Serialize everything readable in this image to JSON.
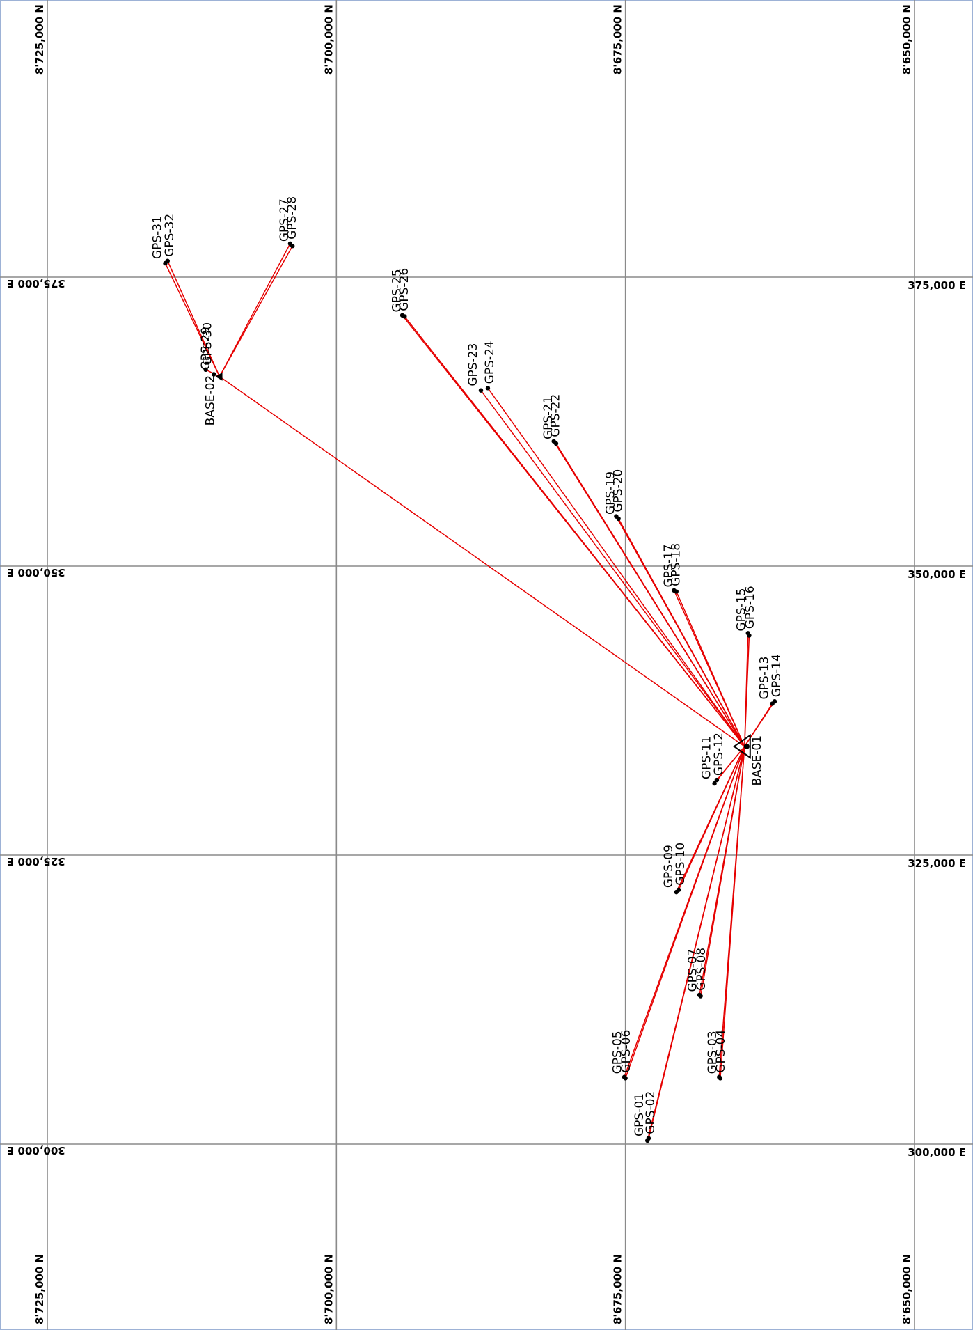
{
  "grid": {
    "northings": [
      {
        "label": "8'725,000 N",
        "value": 8725000
      },
      {
        "label": "8'700,000 N",
        "value": 8700000
      },
      {
        "label": "8'675,000 N",
        "value": 8675000
      },
      {
        "label": "8'650,000 N",
        "value": 8650000
      }
    ],
    "eastings": [
      {
        "label": "375,000 E",
        "value": 375000
      },
      {
        "label": "350,000 E",
        "value": 350000
      },
      {
        "label": "325,000 E",
        "value": 325000
      },
      {
        "label": "300,000 E",
        "value": 300000
      }
    ]
  },
  "bases": [
    {
      "id": "BASE-01",
      "e": 334400,
      "n": 8664700
    },
    {
      "id": "BASE-02",
      "e": 366400,
      "n": 8710100
    }
  ],
  "points": [
    {
      "id": "GPS-01",
      "e": 300300,
      "n": 8673100
    },
    {
      "id": "GPS-02",
      "e": 300500,
      "n": 8673000
    },
    {
      "id": "GPS-03",
      "e": 305700,
      "n": 8666800
    },
    {
      "id": "GPS-04",
      "e": 305800,
      "n": 8666900
    },
    {
      "id": "GPS-05",
      "e": 305700,
      "n": 8675000
    },
    {
      "id": "GPS-06",
      "e": 305800,
      "n": 8675100
    },
    {
      "id": "GPS-07",
      "e": 312800,
      "n": 8668500
    },
    {
      "id": "GPS-08",
      "e": 312900,
      "n": 8668600
    },
    {
      "id": "GPS-09",
      "e": 321800,
      "n": 8670600
    },
    {
      "id": "GPS-10",
      "e": 322000,
      "n": 8670400
    },
    {
      "id": "GPS-11",
      "e": 331200,
      "n": 8667300
    },
    {
      "id": "GPS-12",
      "e": 331500,
      "n": 8667100
    },
    {
      "id": "GPS-13",
      "e": 338100,
      "n": 8662300
    },
    {
      "id": "GPS-14",
      "e": 338300,
      "n": 8662100
    },
    {
      "id": "GPS-15",
      "e": 344000,
      "n": 8664300
    },
    {
      "id": "GPS-16",
      "e": 344200,
      "n": 8664400
    },
    {
      "id": "GPS-17",
      "e": 347800,
      "n": 8670600
    },
    {
      "id": "GPS-18",
      "e": 347900,
      "n": 8670800
    },
    {
      "id": "GPS-19",
      "e": 354100,
      "n": 8675600
    },
    {
      "id": "GPS-20",
      "e": 354300,
      "n": 8675800
    },
    {
      "id": "GPS-21",
      "e": 360600,
      "n": 8681000
    },
    {
      "id": "GPS-22",
      "e": 360800,
      "n": 8681200
    },
    {
      "id": "GPS-23",
      "e": 365200,
      "n": 8687500
    },
    {
      "id": "GPS-24",
      "e": 365400,
      "n": 8686900
    },
    {
      "id": "GPS-25",
      "e": 371600,
      "n": 8694100
    },
    {
      "id": "GPS-26",
      "e": 371700,
      "n": 8694300
    },
    {
      "id": "GPS-27",
      "e": 377700,
      "n": 8703800
    },
    {
      "id": "GPS-28",
      "e": 377900,
      "n": 8704000
    },
    {
      "id": "GPS-29",
      "e": 366600,
      "n": 8710600
    },
    {
      "id": "GPS-30",
      "e": 367000,
      "n": 8711300
    },
    {
      "id": "GPS-31",
      "e": 376200,
      "n": 8714800
    },
    {
      "id": "GPS-32",
      "e": 376400,
      "n": 8714600
    }
  ],
  "baselines": [
    [
      "BASE-01",
      "GPS-01"
    ],
    [
      "BASE-01",
      "GPS-02"
    ],
    [
      "BASE-01",
      "GPS-03"
    ],
    [
      "BASE-01",
      "GPS-04"
    ],
    [
      "BASE-01",
      "GPS-05"
    ],
    [
      "BASE-01",
      "GPS-06"
    ],
    [
      "BASE-01",
      "GPS-07"
    ],
    [
      "BASE-01",
      "GPS-08"
    ],
    [
      "BASE-01",
      "GPS-09"
    ],
    [
      "BASE-01",
      "GPS-10"
    ],
    [
      "BASE-01",
      "GPS-11"
    ],
    [
      "BASE-01",
      "GPS-12"
    ],
    [
      "BASE-01",
      "GPS-13"
    ],
    [
      "BASE-01",
      "GPS-14"
    ],
    [
      "BASE-01",
      "GPS-15"
    ],
    [
      "BASE-01",
      "GPS-16"
    ],
    [
      "BASE-01",
      "GPS-17"
    ],
    [
      "BASE-01",
      "GPS-18"
    ],
    [
      "BASE-01",
      "GPS-19"
    ],
    [
      "BASE-01",
      "GPS-20"
    ],
    [
      "BASE-01",
      "GPS-21"
    ],
    [
      "BASE-01",
      "GPS-22"
    ],
    [
      "BASE-01",
      "GPS-23"
    ],
    [
      "BASE-01",
      "GPS-24"
    ],
    [
      "BASE-01",
      "GPS-25"
    ],
    [
      "BASE-01",
      "GPS-26"
    ],
    [
      "BASE-01",
      "BASE-02"
    ],
    [
      "BASE-02",
      "GPS-27"
    ],
    [
      "BASE-02",
      "GPS-28"
    ],
    [
      "BASE-02",
      "GPS-29"
    ],
    [
      "BASE-02",
      "GPS-30"
    ],
    [
      "BASE-02",
      "GPS-31"
    ],
    [
      "BASE-02",
      "GPS-32"
    ]
  ],
  "colors": {
    "baseline": "#e60000",
    "grid": "#8a8a8a",
    "frame": "#9db2d6",
    "point": "#000000"
  }
}
